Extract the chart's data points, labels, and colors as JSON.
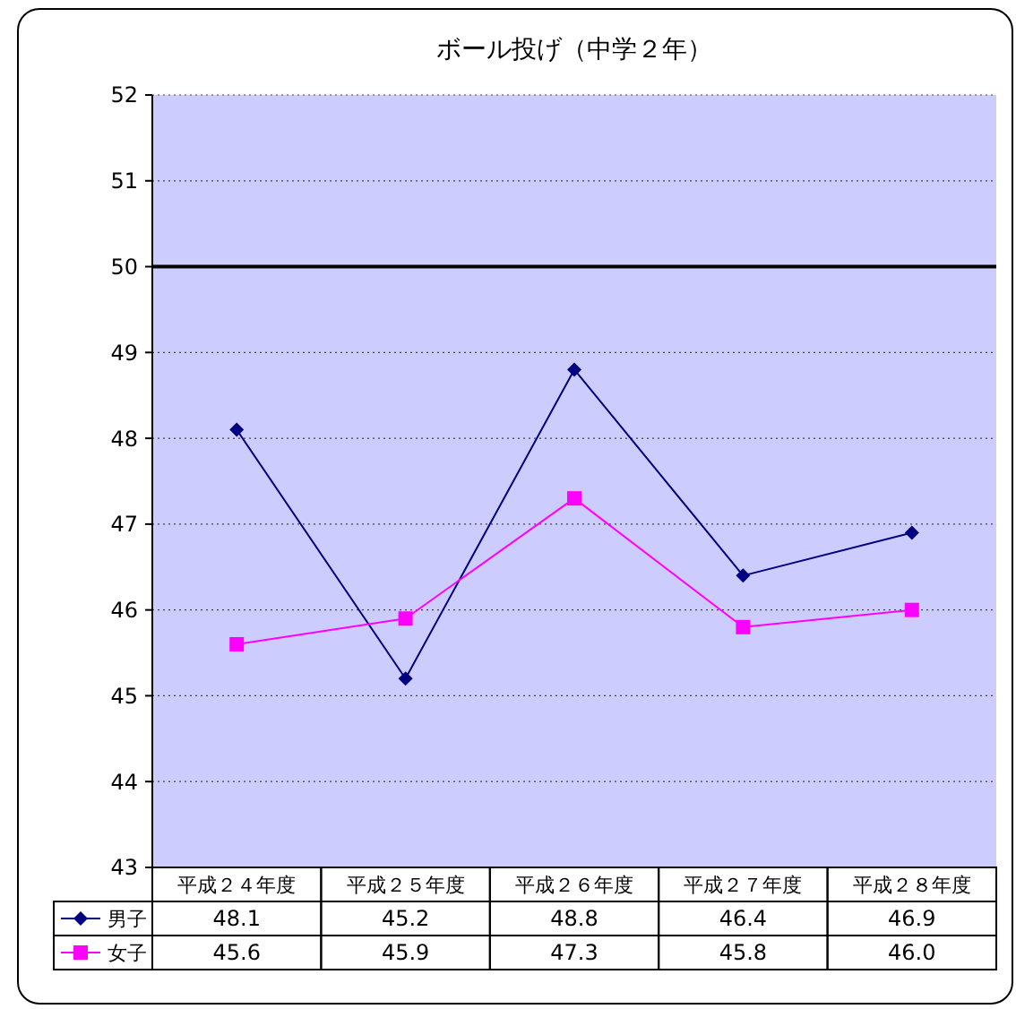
{
  "chart_data": {
    "type": "line",
    "title": "ボール投げ（中学２年）",
    "categories": [
      "平成２４年度",
      "平成２５年度",
      "平成２６年度",
      "平成２７年度",
      "平成２８年度"
    ],
    "series": [
      {
        "name": "男子",
        "color": "#000080",
        "marker": "diamond",
        "values": [
          48.1,
          45.2,
          48.8,
          46.4,
          46.9
        ],
        "value_labels": [
          "48.1",
          "45.2",
          "48.8",
          "46.4",
          "46.9"
        ]
      },
      {
        "name": "女子",
        "color": "#ff00ff",
        "marker": "square",
        "values": [
          45.6,
          45.9,
          47.3,
          45.8,
          46.0
        ],
        "value_labels": [
          "45.6",
          "45.9",
          "47.3",
          "45.8",
          "46.0"
        ]
      }
    ],
    "ylim": [
      43,
      52
    ],
    "yticks": [
      43,
      44,
      45,
      46,
      47,
      48,
      49,
      50,
      51,
      52
    ],
    "grid": "y",
    "legend": "bottom left",
    "ref_lines": [
      {
        "axis": "y",
        "value": 50,
        "color": "#000000"
      }
    ]
  }
}
